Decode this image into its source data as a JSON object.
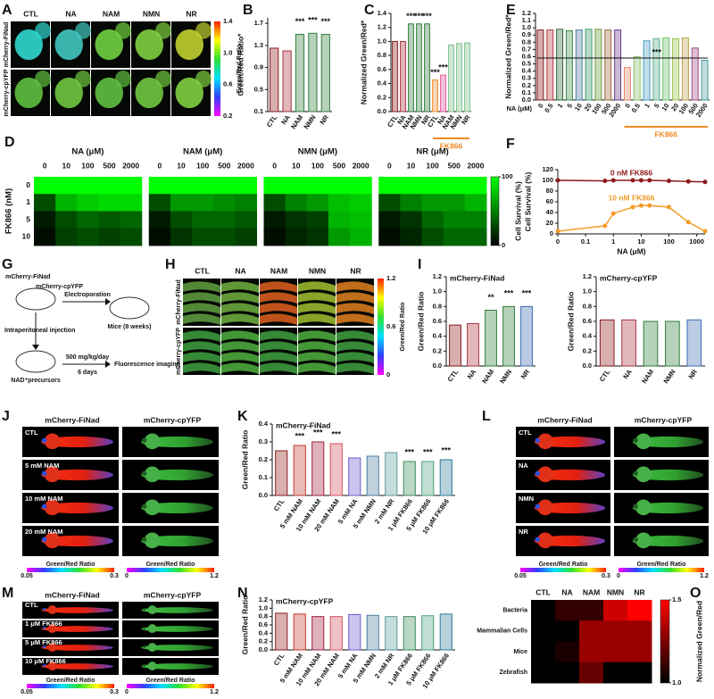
{
  "panel_labels": [
    "A",
    "B",
    "C",
    "D",
    "E",
    "F",
    "G",
    "H",
    "I",
    "J",
    "K",
    "L",
    "M",
    "N",
    "O"
  ],
  "panel_A": {
    "columns": [
      "CTL",
      "NA",
      "NAM",
      "NMN",
      "NR"
    ],
    "rows": [
      "mCherry-FiNad",
      "mCherry-cpYFP"
    ],
    "colorbar": {
      "label": "Green/Red Ratio",
      "ticks": [
        "1.4",
        "1.0",
        "0.6",
        "0.2"
      ]
    }
  },
  "panel_G": {
    "construct_1": "mCherry-FiNad",
    "construct_2": "mCherry-cpYFP",
    "step_1": "Electroporation",
    "mice": "Mice (8 weeks)",
    "route": "Intraperitoneal injection",
    "treatment": "NAD⁺precursors",
    "dose": "500 mg/kg/day",
    "duration": "6 days",
    "readout": "Fluorescence imaging"
  },
  "panel_H": {
    "columns": [
      "CTL",
      "NA",
      "NAM",
      "NMN",
      "NR"
    ],
    "rows": [
      "mCherry-FiNad",
      "mCherry-cpYFP"
    ],
    "colorbar": {
      "label": "Green/Red Ratio",
      "ticks": [
        "1.2",
        "0.6",
        "0"
      ]
    }
  },
  "panel_J": {
    "columns": [
      "mCherry-FiNad",
      "mCherry-cpYFP"
    ],
    "rows": [
      "CTL",
      "5 mM NAM",
      "10 mM NAM",
      "20 mM NAM"
    ],
    "colorbars": [
      {
        "label": "Green/Red Ratio",
        "min": "0.05",
        "max": "0.3"
      },
      {
        "label": "Green/Red Ratio",
        "min": "0",
        "max": "1.2"
      }
    ]
  },
  "panel_L": {
    "columns": [
      "mCherry-FiNad",
      "mCherry-cpYFP"
    ],
    "rows": [
      "CTL",
      "NA",
      "NMN",
      "NR"
    ],
    "colorbars": [
      {
        "label": "Green/Red Ratio",
        "min": "0.05",
        "max": "0.3"
      },
      {
        "label": "Green/Red Ratio",
        "min": "0",
        "max": "1.2"
      }
    ]
  },
  "panel_M": {
    "columns": [
      "mCherry-FiNad",
      "mCherry-cpYFP"
    ],
    "rows": [
      "CTL",
      "1 μM FK866",
      "5 μM FK866",
      "10 μM FK866"
    ],
    "colorbars": [
      {
        "label": "Green/Red Ratio",
        "min": "0.05",
        "max": "0.3"
      },
      {
        "label": "Green/Red Ratio",
        "min": "0",
        "max": "1.2"
      }
    ]
  },
  "chart_data": [
    {
      "type": "bar",
      "ylabel": "Green/Red Ratio*",
      "categories": [
        "CTL",
        "NA",
        "NAM",
        "NMN",
        "NR"
      ],
      "values": [
        1.25,
        1.2,
        1.5,
        1.52,
        1.5
      ],
      "colors": [
        "#8b1a1a",
        "#a8323e",
        "#2e7d3a",
        "#2e7d3a",
        "#2e7d3a"
      ],
      "significance": [
        null,
        null,
        "***",
        "***",
        "***"
      ],
      "ylim": [
        0.1,
        1.8
      ],
      "yticks": [
        0.1,
        0.5,
        0.9,
        1.3,
        1.7
      ]
    },
    {
      "type": "bar",
      "ylabel": "Normalized Green/Red*",
      "categories": [
        "CTL",
        "NA",
        "NAM",
        "NMN",
        "NR",
        "CTL",
        "NA",
        "NAM",
        "NMN",
        "NR"
      ],
      "values": [
        1.0,
        1.0,
        1.25,
        1.25,
        1.25,
        0.45,
        0.52,
        0.95,
        0.97,
        0.98
      ],
      "colors": [
        "#8b1a1a",
        "#a8323e",
        "#2e7d3a",
        "#2e7d3a",
        "#2e7d3a",
        "#f08a24",
        "#e0559a",
        "#7cc08a",
        "#7cc08a",
        "#7cc08a"
      ],
      "significance": [
        null,
        null,
        "***",
        "***",
        "***",
        "***",
        "***",
        null,
        null,
        null
      ],
      "bracket": {
        "text": "FK866",
        "span": [
          5,
          9
        ]
      },
      "ylim": [
        0,
        1.4
      ],
      "yticks": [
        {
          "value": 0,
          "label": "0.0"
        },
        0.2,
        0.4,
        0.6,
        0.8,
        {
          "value": 1,
          "label": "1.0"
        },
        1.2,
        1.4
      ]
    },
    {
      "type": "bar",
      "ylabel": "Normalized Green/Red*",
      "xlabel": "NA (μM)",
      "categories": [
        "0",
        "0.5",
        "1",
        "5",
        "10",
        "20",
        "100",
        "500",
        "2000",
        "0",
        "0.5",
        "1",
        "5",
        "10",
        "20",
        "100",
        "500",
        "2000"
      ],
      "values": [
        0.97,
        0.97,
        0.98,
        0.96,
        0.97,
        0.98,
        0.98,
        0.97,
        0.97,
        0.45,
        0.6,
        0.82,
        0.85,
        0.86,
        0.85,
        0.86,
        0.72,
        0.55
      ],
      "colors": [
        "#8b1a1a",
        "#b33a3a",
        "#2e6b3a",
        "#3d8b4a",
        "#4a7fa0",
        "#3b9a6b",
        "#6a9a3a",
        "#9a6a3a",
        "#6a3a8a",
        "#e08a6a",
        "#8ac46a",
        "#4aa0c0",
        "#5ab08a",
        "#6ac06a",
        "#9ac04a",
        "#c0a04a",
        "#a04a8a",
        "#4a9a9a"
      ],
      "bracket": {
        "text": "FK866",
        "span": [
          9,
          17
        ]
      },
      "bracket_top": {
        "text": "***",
        "span": [
          0,
          17
        ]
      },
      "ylim": [
        0,
        1.2
      ],
      "yticks": [
        {
          "value": 0,
          "label": "0.0"
        },
        0.1,
        0.2,
        0.3,
        0.4,
        0.5,
        0.6,
        0.7,
        0.8,
        0.9,
        {
          "value": 1,
          "label": "1.0"
        },
        1.1,
        1.2
      ]
    },
    {
      "type": "heatmap",
      "ylabel": "FK866 (nM)",
      "rows": [
        "0",
        "1",
        "5",
        "10"
      ],
      "columns": [
        "0",
        "10",
        "100",
        "500",
        "2000"
      ],
      "panels": [
        {
          "title": "NA (μM)",
          "values": [
            [
              100,
              100,
              100,
              100,
              100
            ],
            [
              30,
              70,
              80,
              85,
              85
            ],
            [
              10,
              30,
              40,
              35,
              40
            ],
            [
              5,
              25,
              30,
              25,
              30
            ]
          ]
        },
        {
          "title": "NAM (μM)",
          "values": [
            [
              100,
              100,
              100,
              100,
              100
            ],
            [
              30,
              60,
              60,
              55,
              50
            ],
            [
              10,
              30,
              40,
              40,
              35
            ],
            [
              5,
              20,
              30,
              30,
              25
            ]
          ]
        },
        {
          "title": "NMN (μM)",
          "values": [
            [
              100,
              100,
              100,
              100,
              100
            ],
            [
              30,
              50,
              60,
              75,
              80
            ],
            [
              10,
              20,
              25,
              70,
              75
            ],
            [
              5,
              15,
              20,
              60,
              70
            ]
          ]
        },
        {
          "title": "NR (μM)",
          "values": [
            [
              100,
              100,
              100,
              100,
              100
            ],
            [
              30,
              50,
              60,
              60,
              70
            ],
            [
              10,
              20,
              40,
              50,
              50
            ],
            [
              5,
              15,
              30,
              40,
              40
            ]
          ]
        }
      ],
      "colormap": [
        "#000000",
        "#00ff00"
      ],
      "clim": [
        0,
        100
      ],
      "colorbar": {
        "label": "Cell Survival (%)",
        "ticks": [
          100,
          0
        ]
      }
    },
    {
      "type": "line",
      "xscale": "log",
      "xlabel": "NA (μM)",
      "ylabel": "Cell Survival (%)",
      "x": [
        0,
        0.5,
        1,
        5,
        10,
        20,
        100,
        500,
        2000
      ],
      "series": [
        {
          "name": "0 nM FK866",
          "color": "#8b1a1a",
          "values": [
            100,
            99,
            100,
            100,
            100,
            100,
            99,
            98,
            97
          ]
        },
        {
          "name": "10 nM FK866",
          "color": "#f39c2a",
          "values": [
            5,
            15,
            38,
            50,
            53,
            53,
            50,
            22,
            5
          ]
        }
      ],
      "xlim": [
        0,
        2000
      ],
      "xticks": [
        0,
        0.1,
        1,
        10,
        100,
        1000
      ],
      "ylim": [
        0,
        120
      ],
      "yticks": [
        0,
        20,
        40,
        60,
        80,
        100,
        120
      ]
    },
    {
      "type": "bar",
      "title": "mCherry-FiNad",
      "ylabel": "Green/Red Ratio",
      "categories": [
        "CTL",
        "NA",
        "NAM",
        "NMN",
        "NR"
      ],
      "values": [
        0.55,
        0.57,
        0.75,
        0.8,
        0.8
      ],
      "colors": [
        "#8b1a1a",
        "#a8323e",
        "#2e7d3a",
        "#2e7d3a",
        "#3a6ab0"
      ],
      "significance": [
        null,
        null,
        "**",
        "***",
        "***"
      ],
      "ylim": [
        0,
        1.2
      ],
      "yticks": [
        {
          "value": 0,
          "label": "0.0"
        },
        0.2,
        0.4,
        0.6,
        0.8,
        {
          "value": 1,
          "label": "1.0"
        },
        1.2
      ]
    },
    {
      "type": "bar",
      "title": "mCherry-cpYFP",
      "ylabel": "Green/Red Ratio",
      "categories": [
        "CTL",
        "NA",
        "NAM",
        "NMN",
        "NR"
      ],
      "values": [
        0.62,
        0.62,
        0.6,
        0.6,
        0.62
      ],
      "colors": [
        "#8b1a1a",
        "#a8323e",
        "#2e7d3a",
        "#2e7d3a",
        "#3a6ab0"
      ],
      "ylim": [
        0,
        1.2
      ],
      "yticks": [
        {
          "value": 0,
          "label": "0.0"
        },
        0.2,
        0.4,
        0.6,
        0.8,
        {
          "value": 1,
          "label": "1.0"
        },
        1.2
      ]
    },
    {
      "type": "bar",
      "title": "mCherry-FiNad",
      "ylabel": "Green/Red Ratio",
      "categories": [
        "CTL",
        "5 mM NAM",
        "10 mM NAM",
        "20 mM NAM",
        "5 mM NA",
        "5 mM NMN",
        "2 mM NR",
        "1 μM FK866",
        "5 μM FK866",
        "10 μM FK866"
      ],
      "values": [
        0.25,
        0.28,
        0.3,
        0.29,
        0.21,
        0.22,
        0.24,
        0.19,
        0.19,
        0.2
      ],
      "colors": [
        "#8b1a1a",
        "#c0392b",
        "#a02040",
        "#d0505a",
        "#6a5acd",
        "#4a7fa0",
        "#5a9a9a",
        "#3a8a5a",
        "#4aa07a",
        "#2a7a9a"
      ],
      "significance": [
        null,
        "***",
        "***",
        "***",
        null,
        null,
        null,
        "***",
        "***",
        "***"
      ],
      "ylim": [
        0,
        0.4
      ],
      "yticks": [
        {
          "value": 0,
          "label": "0.0"
        },
        0.1,
        0.2,
        0.3,
        0.4
      ]
    },
    {
      "type": "bar",
      "title": "mCherry-cpYFP",
      "ylabel": "Green/Red Ratio",
      "categories": [
        "CTL",
        "5 mM NAM",
        "10 mM NAM",
        "20 mM NAM",
        "5 mM NA",
        "5 mM NMN",
        "2 mM NR",
        "1 μM FK866",
        "5 μM FK866",
        "10 μM FK866"
      ],
      "values": [
        0.88,
        0.86,
        0.8,
        0.8,
        0.85,
        0.83,
        0.8,
        0.8,
        0.82,
        0.86
      ],
      "colors": [
        "#8b1a1a",
        "#c0392b",
        "#a02040",
        "#d0505a",
        "#6a5acd",
        "#4a7fa0",
        "#5a9a9a",
        "#3a8a5a",
        "#4aa07a",
        "#2a7a9a"
      ],
      "ylim": [
        0,
        1.2
      ],
      "yticks": [
        {
          "value": 0,
          "label": "0.0"
        },
        0.2,
        0.4,
        0.6,
        0.8,
        {
          "value": 1,
          "label": "1.0"
        },
        1.2
      ]
    },
    {
      "type": "heatmap",
      "rows": [
        "Bacteria",
        "Mammalian Cells",
        "Mice",
        "Zebrafish"
      ],
      "columns": [
        "CTL",
        "NA",
        "NAM",
        "NMN",
        "NR"
      ],
      "panels": [
        {
          "values": [
            [
              1.0,
              1.1,
              1.1,
              1.4,
              1.5
            ],
            [
              1.0,
              1.0,
              1.3,
              1.3,
              1.3
            ],
            [
              1.0,
              1.05,
              1.3,
              1.3,
              1.3
            ],
            [
              1.0,
              1.0,
              1.2,
              1.0,
              1.0
            ]
          ]
        }
      ],
      "colormap": [
        "#000000",
        "#ff0000"
      ],
      "clim": [
        1.0,
        1.5
      ],
      "colorbar": {
        "label": "Normalized Green/Red",
        "ticks": [
          1.5,
          {
            "value": 1,
            "label": "1.0"
          }
        ]
      }
    }
  ]
}
